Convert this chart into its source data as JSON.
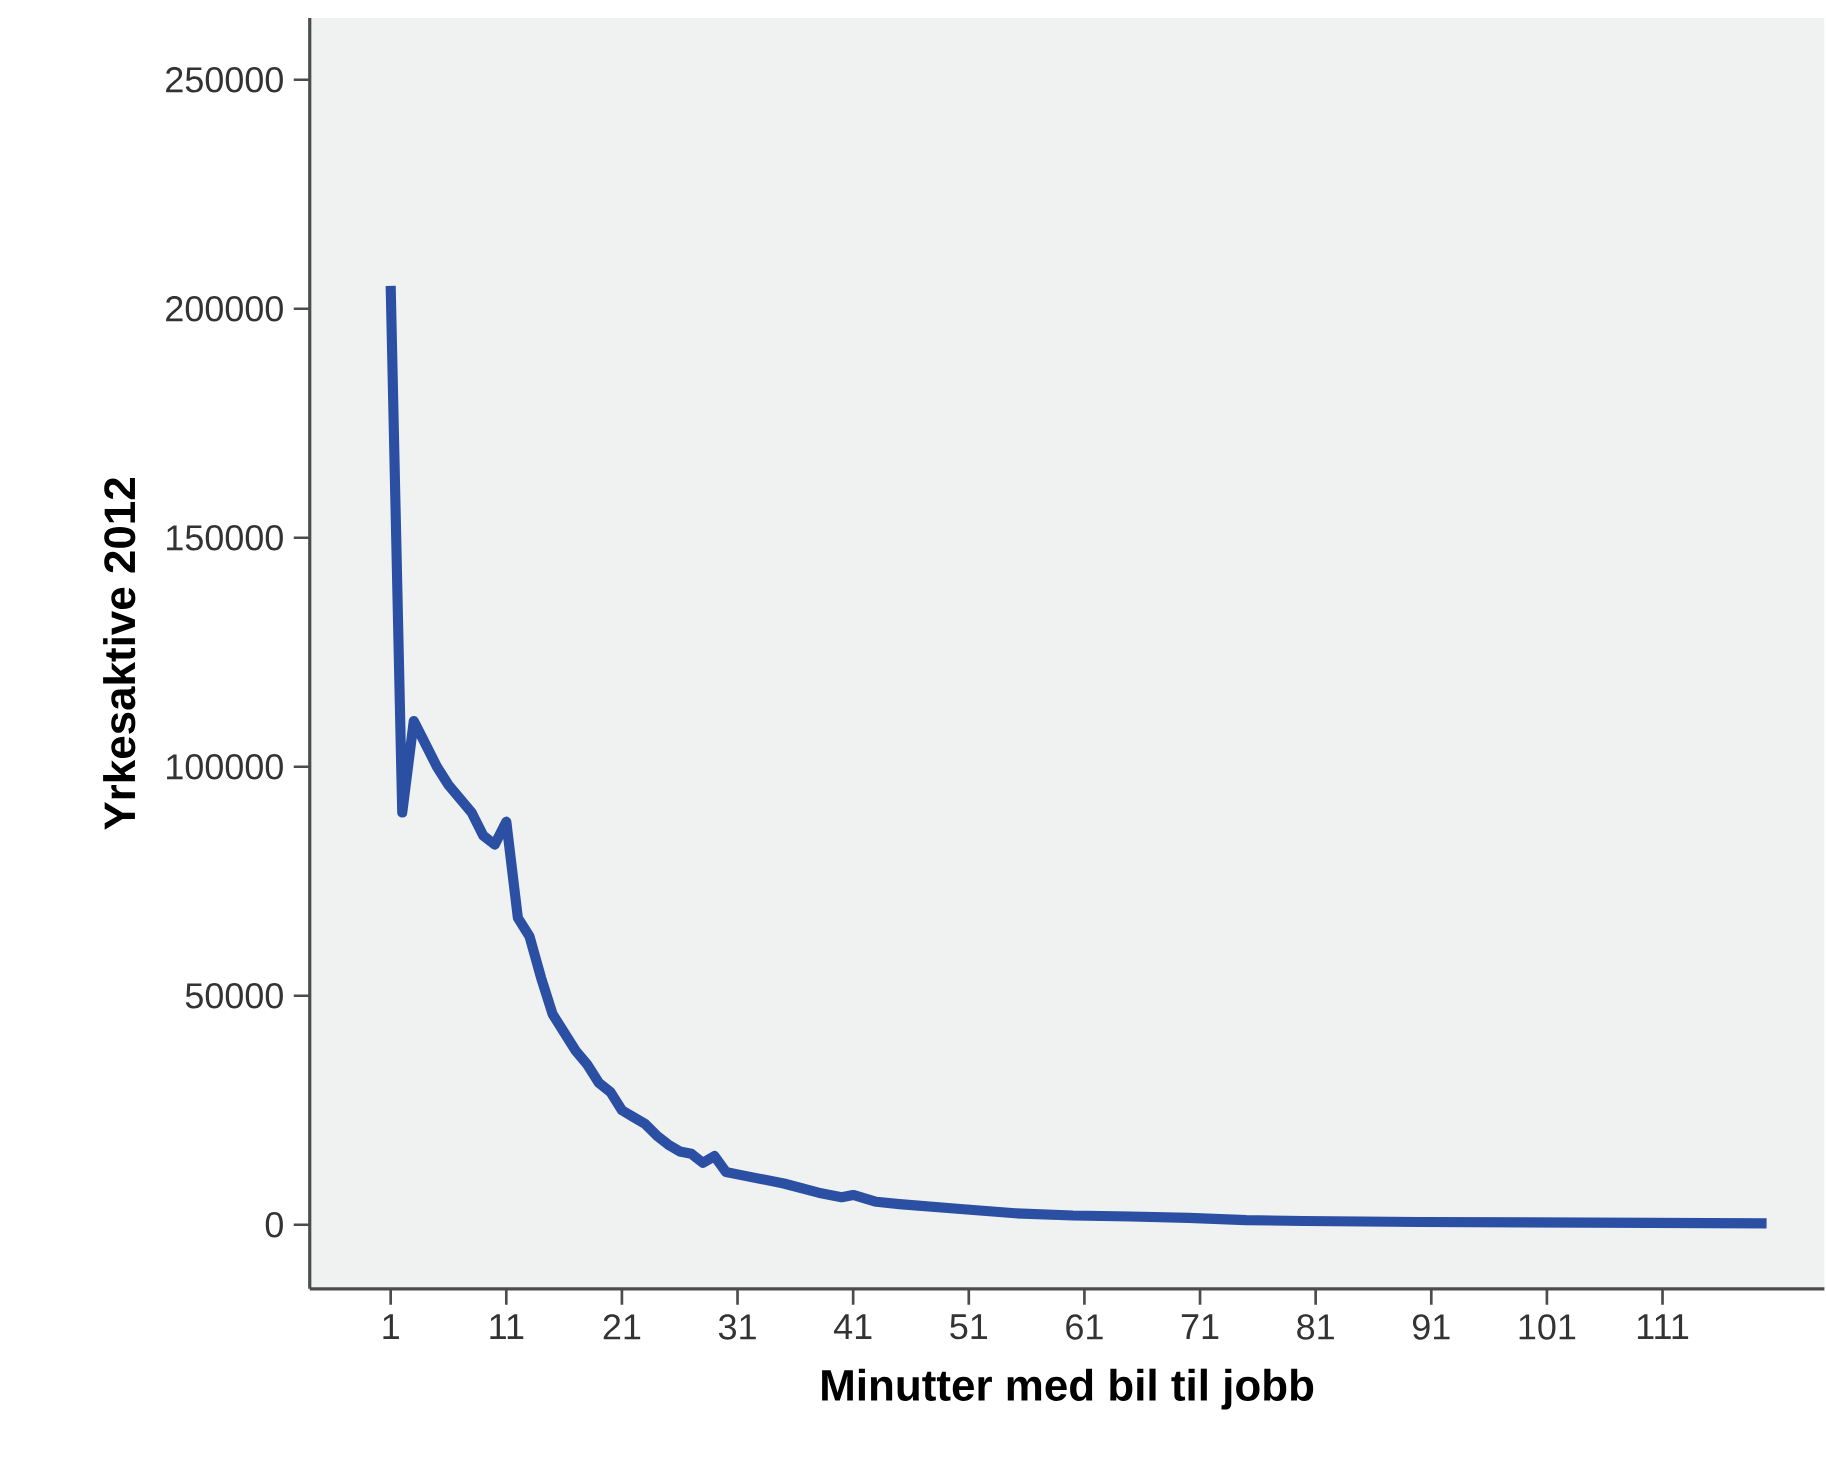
{
  "chart_data": {
    "type": "line",
    "xlabel": "Minutter med bil til jobb",
    "ylabel": "Yrkesaktive 2012",
    "x": [
      1,
      2,
      3,
      4,
      5,
      6,
      7,
      8,
      9,
      10,
      11,
      12,
      13,
      14,
      15,
      16,
      17,
      18,
      19,
      20,
      21,
      22,
      23,
      24,
      25,
      26,
      27,
      28,
      29,
      30,
      31,
      33,
      35,
      38,
      40,
      41,
      43,
      45,
      50,
      55,
      60,
      65,
      70,
      75,
      80,
      90,
      100,
      110,
      120
    ],
    "series": [
      {
        "color": "#2b4fa3",
        "values": [
          205000,
          90000,
          110000,
          105000,
          100000,
          96000,
          93000,
          90000,
          85000,
          83000,
          88000,
          67000,
          63000,
          54000,
          46000,
          42000,
          38000,
          35000,
          31000,
          29000,
          25000,
          23500,
          22000,
          19500,
          17500,
          16000,
          15500,
          13500,
          15000,
          11500,
          11000,
          10000,
          9000,
          7000,
          6000,
          6500,
          5000,
          4500,
          3500,
          2500,
          2000,
          1800,
          1500,
          1000,
          800,
          600,
          500,
          400,
          300
        ]
      }
    ],
    "xlim": [
      -6,
      125
    ],
    "ylim": [
      -14000,
      263500
    ],
    "xticks": [
      1,
      11,
      21,
      31,
      41,
      51,
      61,
      71,
      81,
      91,
      101,
      111
    ],
    "yticks": [
      0,
      50000,
      100000,
      150000,
      200000,
      250000
    ],
    "grid": false,
    "marker": "none",
    "line_style": "solid"
  }
}
